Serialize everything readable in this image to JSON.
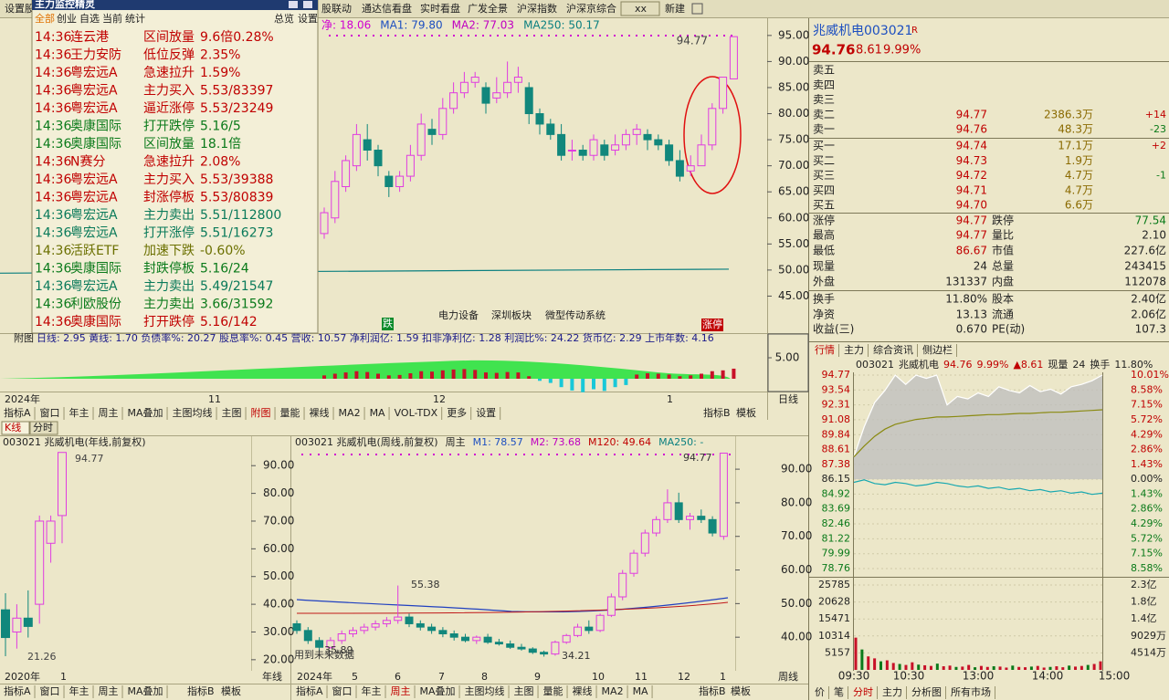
{
  "toolbar": {
    "tabs": [
      "设置股",
      "股联动",
      "通达信看盘",
      "实时看盘",
      "广发全景",
      "沪深指数",
      "沪深京综合",
      "xx",
      "新建"
    ]
  },
  "monitor": {
    "title": "主力监控精灵",
    "filters": [
      "全部",
      "创业",
      "自选",
      "当前",
      "统计"
    ],
    "actions": [
      "总览",
      "设置"
    ],
    "rows": [
      {
        "time": "14:36",
        "stock": "连云港",
        "signal": "区间放量",
        "value": "9.6倍0.28%",
        "color": "#c00000"
      },
      {
        "time": "14:36",
        "stock": "王力安防",
        "signal": "低位反弹",
        "value": "2.35%",
        "color": "#c00000"
      },
      {
        "time": "14:36",
        "stock": "粤宏远A",
        "signal": "急速拉升",
        "value": "1.59%",
        "color": "#c00000"
      },
      {
        "time": "14:36",
        "stock": "粤宏远A",
        "signal": "主力买入",
        "value": "5.53/83397",
        "color": "#c00000"
      },
      {
        "time": "14:36",
        "stock": "粤宏远A",
        "signal": "逼近涨停",
        "value": "5.53/23249",
        "color": "#c00000"
      },
      {
        "time": "14:36",
        "stock": "奥康国际",
        "signal": "打开跌停",
        "value": "5.16/5",
        "color": "#0a7a1a"
      },
      {
        "time": "14:36",
        "stock": "奥康国际",
        "signal": "区间放量",
        "value": "18.1倍",
        "color": "#0a7a1a"
      },
      {
        "time": "14:36",
        "stock": "N赛分",
        "signal": "急速拉升",
        "value": "2.08%",
        "color": "#c00000"
      },
      {
        "time": "14:36",
        "stock": "粤宏远A",
        "signal": "主力买入",
        "value": "5.53/39388",
        "color": "#c00000"
      },
      {
        "time": "14:36",
        "stock": "粤宏远A",
        "signal": "封涨停板",
        "value": "5.53/80839",
        "color": "#c00000"
      },
      {
        "time": "14:36",
        "stock": "粤宏远A",
        "signal": "主力卖出",
        "value": "5.51/112800",
        "color": "#0a7a5a"
      },
      {
        "time": "14:36",
        "stock": "粤宏远A",
        "signal": "打开涨停",
        "value": "5.51/16273",
        "color": "#0a7a5a"
      },
      {
        "time": "14:36",
        "stock": "活跃ETF",
        "signal": "加速下跌",
        "value": "-0.60%",
        "color": "#6b7000"
      },
      {
        "time": "14:36",
        "stock": "奥康国际",
        "signal": "封跌停板",
        "value": "5.16/24",
        "color": "#0a7a1a"
      },
      {
        "time": "14:36",
        "stock": "粤宏远A",
        "signal": "主力卖出",
        "value": "5.49/21547",
        "color": "#0a7a5a"
      },
      {
        "time": "14:36",
        "stock": "利欧股份",
        "signal": "主力卖出",
        "value": "3.66/31592",
        "color": "#0a7a1a"
      },
      {
        "time": "14:36",
        "stock": "奥康国际",
        "signal": "打开跌停",
        "value": "5.16/142",
        "color": "#c00000"
      }
    ]
  },
  "daily": {
    "header": [
      {
        "text": "净: 18.06",
        "color": "#d000d0"
      },
      {
        "text": "MA1: 79.80",
        "color": "#1d4fc0"
      },
      {
        "text": "MA2: 77.03",
        "color": "#c000c0"
      },
      {
        "text": "MA250: 50.17",
        "color": "#0a7f7f"
      }
    ],
    "high_label": "94.77",
    "sectors": [
      "电力设备",
      "深圳板块",
      "微型传动系统"
    ],
    "badges": [
      {
        "text": "跌",
        "color": "#0a8a2a"
      },
      {
        "text": "涨停",
        "color": "#c00000"
      }
    ],
    "up_color": "#e03ce0",
    "down_color": "#11877c",
    "ylim": [
      37.9,
      98.3
    ],
    "yticks": [
      {
        "value": 95,
        "label": "95.00"
      },
      {
        "value": 90,
        "label": "90.00"
      },
      {
        "value": 85,
        "label": "85.00"
      },
      {
        "value": 80,
        "label": "80.00"
      },
      {
        "value": 75,
        "label": "75.00"
      },
      {
        "value": 70,
        "label": "70.00"
      },
      {
        "value": 65,
        "label": "65.00"
      },
      {
        "value": 60,
        "label": "60.00"
      },
      {
        "value": 55,
        "label": "55.00"
      },
      {
        "value": 50,
        "label": "50.00"
      },
      {
        "value": 45,
        "label": "45.00"
      }
    ],
    "candles": [
      [
        57,
        62,
        56,
        61
      ],
      [
        60,
        69,
        59,
        67
      ],
      [
        66,
        72,
        65,
        71
      ],
      [
        70,
        78,
        69,
        76
      ],
      [
        75,
        78,
        71,
        73
      ],
      [
        73,
        74,
        68,
        70
      ],
      [
        68,
        69,
        64,
        66
      ],
      [
        66,
        69,
        65,
        68
      ],
      [
        68,
        74,
        67,
        72
      ],
      [
        72,
        80,
        71,
        78
      ],
      [
        77,
        79,
        74,
        76
      ],
      [
        76,
        83,
        75,
        81
      ],
      [
        81,
        86,
        80,
        84
      ],
      [
        84,
        88,
        83,
        86
      ],
      [
        86,
        88,
        85,
        87
      ],
      [
        85,
        86,
        80,
        82
      ],
      [
        83,
        87,
        82,
        84
      ],
      [
        84,
        90,
        83,
        86
      ],
      [
        86,
        89,
        84,
        87
      ],
      [
        85,
        86,
        78,
        80
      ],
      [
        80,
        81,
        76,
        78
      ],
      [
        78,
        79,
        75,
        76
      ],
      [
        76,
        78,
        71,
        72
      ],
      [
        73,
        75,
        71,
        73
      ],
      [
        73,
        74,
        71,
        72
      ],
      [
        72,
        76,
        71,
        75
      ],
      [
        74,
        75,
        71,
        72
      ],
      [
        73,
        76,
        72,
        74
      ],
      [
        74,
        77,
        73,
        76
      ],
      [
        76,
        78,
        74,
        77
      ],
      [
        76,
        77,
        73,
        75
      ],
      [
        75,
        76,
        73,
        74
      ],
      [
        74,
        75,
        70,
        71
      ],
      [
        71,
        73,
        67,
        68
      ],
      [
        69,
        72,
        68,
        70
      ],
      [
        70,
        76,
        70,
        74
      ],
      [
        74,
        82,
        73,
        81
      ],
      [
        81,
        87,
        80,
        87
      ],
      [
        86.67,
        94.77,
        86.67,
        94.77
      ]
    ],
    "ma250": [
      49.4,
      50.17
    ],
    "indicator": {
      "label": "附图",
      "text": "日线: 2.95 黄线: 1.70 负债率%: 20.27 股息率%: 0.45 营收: 10.57 净利润亿: 1.59 扣非净利亿: 1.28 利润比%: 24.22 货币亿: 2.29 上市年数: 4.16",
      "ytick": {
        "value": 5,
        "label": "5.00"
      },
      "bars": [
        0.8,
        1.2,
        1.5,
        1.8,
        1.6,
        1.2,
        0.8,
        0.9,
        1.3,
        1.8,
        1.7,
        2.0,
        2.2,
        2.3,
        2.1,
        1.5,
        1.4,
        1.6,
        1.5,
        0.6,
        -0.5,
        -1.0,
        -2.0,
        -2.8,
        -3.2,
        -2.5,
        -2.9,
        -2.0,
        -1.5,
        1.0,
        1.3,
        1.2,
        1.0,
        0.6,
        0.8,
        1.2,
        1.8,
        2.0,
        2.4
      ]
    },
    "dates": [
      "2024年",
      "11",
      "12",
      "1",
      "日线"
    ],
    "buttons": [
      "指标A",
      "窗口",
      "年主",
      "周主",
      "MA叠加",
      "主图均线",
      "主图",
      "附图",
      "量能",
      "裸线",
      "MA2",
      "MA",
      "VOL-TDX",
      "更多",
      "设置"
    ],
    "buttons_right": [
      "指标B",
      "模板"
    ]
  },
  "lower_tabs": [
    "K线",
    "分时"
  ],
  "yearly": {
    "header": "003021 兆威机电(年线,前复权)",
    "high_label": "94.77",
    "low_label": "21.26",
    "ylim": [
      16,
      96
    ],
    "yticks": [
      {
        "value": 90,
        "label": "90.00"
      },
      {
        "value": 80,
        "label": "80.00"
      },
      {
        "value": 70,
        "label": "70.00"
      },
      {
        "value": 60,
        "label": "60.00"
      },
      {
        "value": 50,
        "label": "50.00"
      },
      {
        "value": 40,
        "label": "40.00"
      },
      {
        "value": 30,
        "label": "30.00"
      },
      {
        "value": 20,
        "label": "20.00"
      }
    ],
    "candles": [
      [
        38,
        44,
        21.26,
        28
      ],
      [
        30,
        40,
        24,
        35
      ],
      [
        35,
        45,
        28,
        32
      ],
      [
        40,
        72,
        33,
        70
      ],
      [
        62,
        72,
        55,
        70
      ],
      [
        72,
        94.77,
        62,
        94.77
      ]
    ],
    "dates": [
      "2020年",
      "1",
      "年线"
    ],
    "buttons": [
      "指标A",
      "窗口",
      "年主",
      "周主",
      "MA叠加"
    ],
    "buttons_right": [
      "指标B",
      "模板"
    ]
  },
  "weekly": {
    "header": [
      {
        "text": "003021 兆威机电(周线,前复权)",
        "color": "#222"
      },
      {
        "text": "周主",
        "color": "#222"
      },
      {
        "text": "M1: 78.57",
        "color": "#1d4fc0"
      },
      {
        "text": "M2: 73.68",
        "color": "#c000c0"
      },
      {
        "text": "M120: 49.64",
        "color": "#c00000"
      },
      {
        "text": "MA250: -",
        "color": "#0a7f7f"
      }
    ],
    "annotations": [
      "55.38",
      "35.89",
      "34.21",
      "94.77",
      "用到未来数据"
    ],
    "ylim": [
      30,
      96
    ],
    "yticks": [
      {
        "value": 90,
        "label": "90.00"
      },
      {
        "value": 80,
        "label": "80.00"
      },
      {
        "value": 70,
        "label": "70.00"
      },
      {
        "value": 60,
        "label": "60.00"
      },
      {
        "value": 50,
        "label": "50.00"
      },
      {
        "value": 40,
        "label": "40.00"
      }
    ],
    "candles": [
      [
        44,
        45,
        41,
        42
      ],
      [
        42,
        43,
        38,
        39
      ],
      [
        39,
        40,
        35.89,
        37
      ],
      [
        37,
        40,
        36.5,
        39
      ],
      [
        39,
        42,
        38,
        41
      ],
      [
        41,
        43,
        40,
        42
      ],
      [
        42,
        44,
        41,
        43
      ],
      [
        43,
        45,
        42,
        44
      ],
      [
        44,
        46,
        43,
        45
      ],
      [
        45,
        55.38,
        44,
        46
      ],
      [
        46,
        47,
        43,
        44
      ],
      [
        44,
        45,
        42,
        43
      ],
      [
        43,
        44,
        41,
        42
      ],
      [
        42,
        43,
        40,
        41
      ],
      [
        41,
        42,
        39,
        40
      ],
      [
        40,
        41,
        38.5,
        39
      ],
      [
        39,
        40.5,
        38,
        40
      ],
      [
        40,
        41,
        38,
        38.5
      ],
      [
        38.5,
        39.5,
        37.5,
        38
      ],
      [
        38,
        39,
        36.5,
        37
      ],
      [
        37,
        38,
        36,
        36.5
      ],
      [
        36.5,
        37,
        35,
        35.5
      ],
      [
        35.5,
        36,
        34.21,
        35
      ],
      [
        35,
        39,
        34.5,
        38.5
      ],
      [
        38.5,
        41,
        38,
        40.5
      ],
      [
        40.5,
        44,
        40,
        43
      ],
      [
        43,
        45,
        41,
        42
      ],
      [
        42,
        47,
        41.5,
        46.5
      ],
      [
        46.5,
        53,
        46,
        52
      ],
      [
        52,
        60,
        51,
        59
      ],
      [
        59,
        66,
        58,
        65
      ],
      [
        65,
        72,
        64,
        71
      ],
      [
        71,
        76,
        70,
        75
      ],
      [
        75,
        84,
        74,
        80
      ],
      [
        80,
        83,
        74,
        75
      ],
      [
        75,
        77,
        72,
        76
      ],
      [
        76,
        78,
        74,
        75
      ],
      [
        75,
        76,
        70,
        71
      ],
      [
        70,
        94.77,
        69,
        94.77
      ]
    ],
    "dates": [
      "2024年",
      "5",
      "6",
      "7",
      "8",
      "9",
      "10",
      "11",
      "12",
      "1",
      "周线"
    ],
    "buttons": [
      "指标A",
      "窗口",
      "年主",
      "周主",
      "MA叠加",
      "主图均线",
      "主图",
      "量能",
      "裸线",
      "MA2",
      "MA"
    ],
    "buttons_right": [
      "指标B",
      "模板"
    ]
  },
  "quote": {
    "name": "兆威机电",
    "code": "003021",
    "flag": "R",
    "price": "94.76",
    "change": "8.61",
    "pct": "9.99%",
    "asks": [
      {
        "label": "卖五",
        "price": "",
        "volume": "",
        "delta": ""
      },
      {
        "label": "卖四",
        "price": "",
        "volume": "",
        "delta": ""
      },
      {
        "label": "卖三",
        "price": "",
        "volume": "",
        "delta": ""
      },
      {
        "label": "卖二",
        "price": "94.77",
        "volume": "2386.3万",
        "delta": "+14"
      },
      {
        "label": "卖一",
        "price": "94.76",
        "volume": "48.3万",
        "delta": "-23"
      }
    ],
    "bids": [
      {
        "label": "买一",
        "price": "94.74",
        "volume": "17.1万",
        "delta": "+2"
      },
      {
        "label": "买二",
        "price": "94.73",
        "volume": "1.9万",
        "delta": ""
      },
      {
        "label": "买三",
        "price": "94.72",
        "volume": "4.7万",
        "delta": "-1"
      },
      {
        "label": "买四",
        "price": "94.71",
        "volume": "4.7万",
        "delta": ""
      },
      {
        "label": "买五",
        "price": "94.70",
        "volume": "6.6万",
        "delta": ""
      }
    ],
    "stats": [
      [
        "涨停",
        "94.77",
        "跌停",
        "77.54"
      ],
      [
        "最高",
        "94.77",
        "量比",
        "2.10"
      ],
      [
        "最低",
        "86.67",
        "市值",
        "227.6亿"
      ],
      [
        "现量",
        "24",
        "总量",
        "243415"
      ],
      [
        "外盘",
        "131337",
        "内盘",
        "112078"
      ],
      [
        "换手",
        "11.80%",
        "股本",
        "2.40亿"
      ],
      [
        "净资",
        "13.13",
        "流通",
        "2.06亿"
      ],
      [
        "收益(三)",
        "0.670",
        "PE(动)",
        "107.3"
      ]
    ],
    "tabs": [
      "行情",
      "主力",
      "综合资讯",
      "侧边栏"
    ]
  },
  "intraday": {
    "header": [
      {
        "text": "003021",
        "color": "#222"
      },
      {
        "text": "兆威机电",
        "color": "#222"
      },
      {
        "text": "94.76",
        "color": "#c00000"
      },
      {
        "text": "9.99%",
        "color": "#c00000"
      },
      {
        "text": "▲8.61",
        "color": "#c00000"
      },
      {
        "text": "现量",
        "color": "#222"
      },
      {
        "text": "24",
        "color": "#222"
      },
      {
        "text": "换手",
        "color": "#222"
      },
      {
        "text": "11.80%",
        "color": "#222"
      }
    ],
    "ylim": [
      78.76,
      94.77
    ],
    "yticks": [
      94.77,
      93.54,
      92.31,
      91.08,
      89.84,
      88.61,
      87.38,
      86.15,
      84.92,
      83.69,
      82.46,
      81.22,
      79.99,
      78.76
    ],
    "pct_labels": [
      "10.01%",
      "8.58%",
      "7.15%",
      "5.72%",
      "4.29%",
      "2.86%",
      "1.43%",
      "0.00%",
      "1.43%",
      "2.86%",
      "4.29%",
      "5.72%",
      "7.15%",
      "8.58%"
    ],
    "price": [
      88.0,
      90.5,
      92.5,
      93.5,
      94.77,
      94.0,
      94.77,
      94.5,
      94.77,
      92.3,
      93.0,
      92.8,
      93.3,
      93.0,
      93.8,
      93.5,
      93.3,
      93.9,
      93.4,
      93.6,
      93.2,
      93.8,
      94.0,
      94.3,
      94.77
    ],
    "average": [
      88.0,
      88.9,
      89.7,
      90.3,
      90.7,
      90.9,
      91.1,
      91.2,
      91.3,
      91.3,
      91.35,
      91.4,
      91.45,
      91.5,
      91.5,
      91.55,
      91.6,
      91.6,
      91.65,
      91.7,
      91.7,
      91.75,
      91.8,
      91.85,
      91.9
    ],
    "index": [
      85.9,
      86.1,
      85.8,
      85.7,
      85.9,
      85.8,
      85.6,
      85.7,
      85.9,
      85.8,
      85.6,
      85.5,
      85.6,
      85.4,
      85.5,
      85.3,
      85.4,
      85.2,
      85.3,
      85.1,
      85.2,
      85.0,
      85.1,
      84.9,
      85.0
    ],
    "vlim": [
      0,
      25785
    ],
    "vticks": [
      25785,
      20628,
      15471,
      10314,
      5157
    ],
    "vlabels": [
      "2.3亿",
      "1.8亿",
      "1.4亿",
      "9029万",
      "4514万"
    ],
    "volume": [
      9800,
      6200,
      4100,
      3500,
      2600,
      2900,
      2100,
      1800,
      1500,
      2300,
      1600,
      1400,
      1200,
      1900,
      1100,
      1300,
      900,
      1000,
      1500,
      800,
      1200,
      900,
      1100,
      1000,
      700,
      1300,
      900,
      800,
      1000,
      1200,
      700,
      900,
      1100,
      800,
      1300,
      1000,
      1200,
      1500,
      1800,
      2600
    ],
    "times": [
      "09:30",
      "10:30",
      "13:00",
      "14:00",
      "15:00"
    ],
    "tabs": [
      "价",
      "笔",
      "分时",
      "主力",
      "分析图",
      "所有市场"
    ]
  }
}
